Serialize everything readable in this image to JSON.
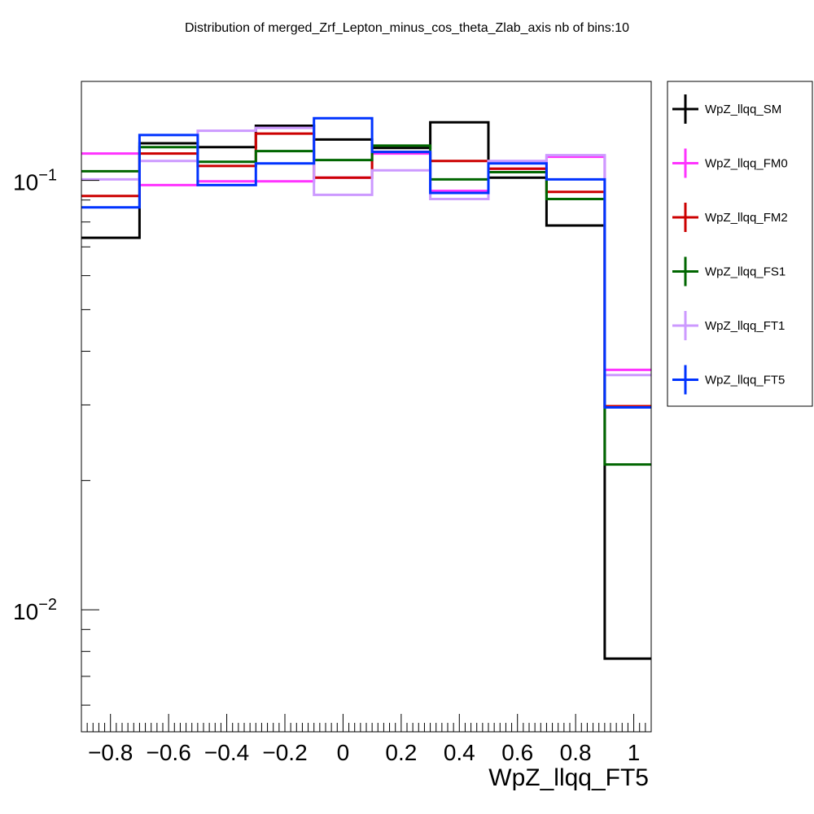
{
  "chart_data": {
    "type": "line",
    "title": "Distribution of merged_Zrf_Lepton_minus_cos_theta_Zlab_axis nb of bins:10",
    "xlabel": "WpZ_llqq_FT5",
    "ylabel": "",
    "log_y": true,
    "xlim": [
      -0.9,
      1.06
    ],
    "ylim": [
      0.0052,
      0.17
    ],
    "grid": false,
    "legend_position": "right",
    "x_ticks": [
      -0.8,
      -0.6,
      -0.4,
      -0.2,
      0,
      0.2,
      0.4,
      0.6,
      0.8,
      1
    ],
    "x_tick_labels": [
      "−0.8",
      "−0.6",
      "−0.4",
      "−0.2",
      "0",
      "0.2",
      "0.4",
      "0.6",
      "0.8",
      "1"
    ],
    "y_major_ticks": [
      {
        "value": 0.1,
        "base": "10",
        "exponent": "−1"
      },
      {
        "value": 0.01,
        "base": "10",
        "exponent": "−2"
      }
    ],
    "bin_edges": [
      -0.9,
      -0.7,
      -0.5,
      -0.3,
      -0.1,
      0.1,
      0.3,
      0.5,
      0.7,
      0.9,
      1.1
    ],
    "series": [
      {
        "name": "WpZ_llqq_SM",
        "color": "#000000",
        "values": [
          0.0735,
          0.122,
          0.1195,
          0.134,
          0.1245,
          0.119,
          0.1365,
          0.1015,
          0.0785,
          0.0077
        ]
      },
      {
        "name": "WpZ_llqq_FM0",
        "color": "#ff33ff",
        "values": [
          0.1155,
          0.0975,
          0.0995,
          0.0995,
          0.1015,
          0.1155,
          0.0945,
          0.1065,
          0.1135,
          0.0362
        ]
      },
      {
        "name": "WpZ_llqq_FM2",
        "color": "#cc0000",
        "values": [
          0.092,
          0.1155,
          0.108,
          0.1285,
          0.1015,
          0.1165,
          0.111,
          0.1065,
          0.094,
          0.0298
        ]
      },
      {
        "name": "WpZ_llqq_FS1",
        "color": "#006600",
        "values": [
          0.105,
          0.1195,
          0.1105,
          0.117,
          0.1115,
          0.1205,
          0.1005,
          0.1045,
          0.0905,
          0.0218
        ]
      },
      {
        "name": "WpZ_llqq_FT1",
        "color": "#cc99ff",
        "values": [
          0.1005,
          0.111,
          0.1305,
          0.1325,
          0.0925,
          0.1055,
          0.0905,
          0.111,
          0.1145,
          0.0352
        ]
      },
      {
        "name": "WpZ_llqq_FT5",
        "color": "#0033ff",
        "values": [
          0.0865,
          0.1275,
          0.0975,
          0.1095,
          0.1395,
          0.1165,
          0.0935,
          0.1095,
          0.1005,
          0.0296
        ]
      }
    ]
  }
}
